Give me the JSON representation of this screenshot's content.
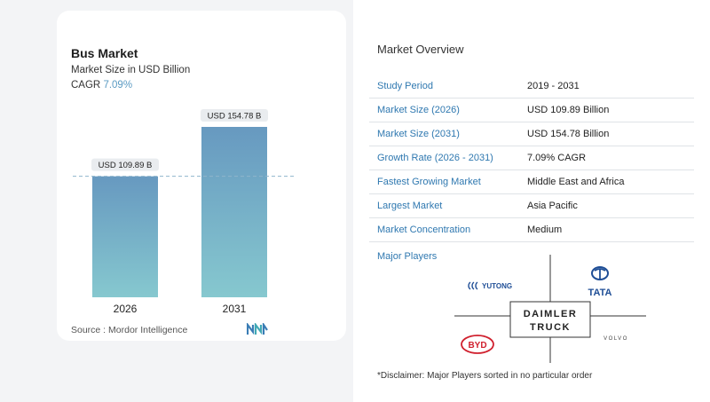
{
  "chart_card": {
    "title": "Bus Market",
    "subtitle": "Market Size in USD Billion",
    "cagr_label": "CAGR",
    "cagr_value": "7.09%",
    "source": "Source :  Mordor Intelligence"
  },
  "chart_data": {
    "type": "bar",
    "title": "Bus Market",
    "categories": [
      "2026",
      "2031"
    ],
    "values": [
      109.89,
      154.78
    ],
    "data_labels": [
      "USD 109.89 B",
      "USD 154.78 B"
    ],
    "ylabel": "Market Size in USD Billion",
    "ylim": [
      0,
      154.78
    ],
    "reference_line_value": 109.89,
    "grid": false,
    "bar_gradient": [
      "#6799c0",
      "#86c8cf"
    ]
  },
  "overview": {
    "title": "Market Overview",
    "rows": [
      {
        "label": "Study Period",
        "value": "2019 - 2031"
      },
      {
        "label": "Market Size (2026)",
        "value": "USD 109.89 Billion"
      },
      {
        "label": "Market Size (2031)",
        "value": "USD 154.78 Billion"
      },
      {
        "label": "Growth Rate (2026 - 2031)",
        "value": "7.09% CAGR"
      },
      {
        "label": "Fastest Growing Market",
        "value": "Middle East and Africa"
      },
      {
        "label": "Largest Market",
        "value": "Asia Pacific"
      },
      {
        "label": "Market Concentration",
        "value": "Medium"
      }
    ],
    "major_players_label": "Major Players",
    "players": {
      "yutong": "YUTONG",
      "tata": "TATA",
      "daimler_line1": "DAIMLER",
      "daimler_line2": "TRUCK",
      "byd": "BYD",
      "volvo": "VOLVO"
    },
    "disclaimer": "*Disclaimer: Major Players sorted in no particular order"
  },
  "colors": {
    "accent_blue": "#2f78b0",
    "cagr_blue": "#5b9bc3"
  }
}
